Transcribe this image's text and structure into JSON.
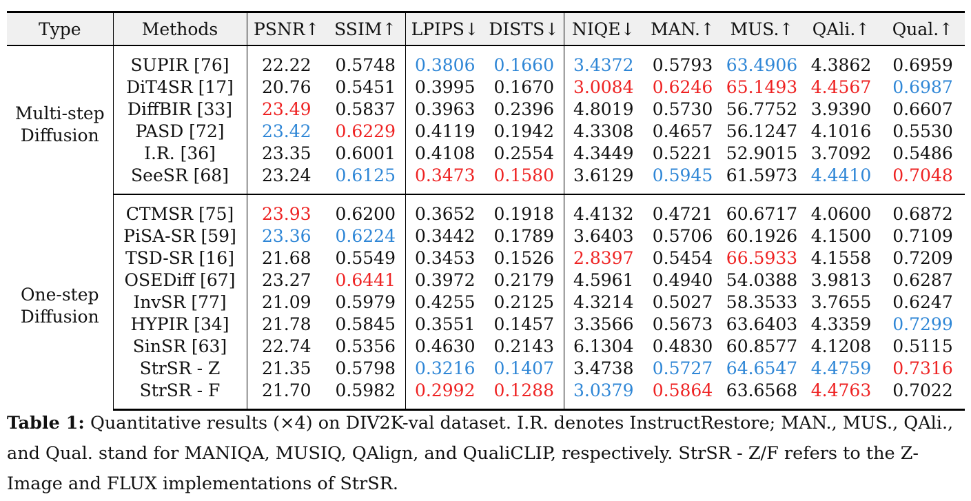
{
  "colors": {
    "best": "#ee2222",
    "second": "#2e86d6",
    "normal": "#111111",
    "header_bg": "#f0f0f0"
  },
  "table": {
    "headers": [
      "Type",
      "Methods",
      "PSNR↑",
      "SSIM↑",
      "LPIPS↓",
      "DISTS↓",
      "NIQE↓",
      "MAN.↑",
      "MUS.↑",
      "QAli.↑",
      "Qual.↑"
    ],
    "groups": [
      {
        "type_lines": [
          "Multi-step",
          "Diffusion"
        ],
        "rows": [
          {
            "method": "SUPIR [76]",
            "cells": [
              {
                "v": "22.22",
                "c": "normal"
              },
              {
                "v": "0.5748",
                "c": "normal"
              },
              {
                "v": "0.3806",
                "c": "second"
              },
              {
                "v": "0.1660",
                "c": "second"
              },
              {
                "v": "3.4372",
                "c": "second"
              },
              {
                "v": "0.5793",
                "c": "normal"
              },
              {
                "v": "63.4906",
                "c": "second"
              },
              {
                "v": "4.3862",
                "c": "normal"
              },
              {
                "v": "0.6959",
                "c": "normal"
              }
            ]
          },
          {
            "method": "DiT4SR [17]",
            "cells": [
              {
                "v": "20.76",
                "c": "normal"
              },
              {
                "v": "0.5451",
                "c": "normal"
              },
              {
                "v": "0.3995",
                "c": "normal"
              },
              {
                "v": "0.1670",
                "c": "normal"
              },
              {
                "v": "3.0084",
                "c": "best"
              },
              {
                "v": "0.6246",
                "c": "best"
              },
              {
                "v": "65.1493",
                "c": "best"
              },
              {
                "v": "4.4567",
                "c": "best"
              },
              {
                "v": "0.6987",
                "c": "second"
              }
            ]
          },
          {
            "method": "DiffBIR [33]",
            "cells": [
              {
                "v": "23.49",
                "c": "best"
              },
              {
                "v": "0.5837",
                "c": "normal"
              },
              {
                "v": "0.3963",
                "c": "normal"
              },
              {
                "v": "0.2396",
                "c": "normal"
              },
              {
                "v": "4.8019",
                "c": "normal"
              },
              {
                "v": "0.5730",
                "c": "normal"
              },
              {
                "v": "56.7752",
                "c": "normal"
              },
              {
                "v": "3.9390",
                "c": "normal"
              },
              {
                "v": "0.6607",
                "c": "normal"
              }
            ]
          },
          {
            "method": "PASD [72]",
            "cells": [
              {
                "v": "23.42",
                "c": "second"
              },
              {
                "v": "0.6229",
                "c": "best"
              },
              {
                "v": "0.4119",
                "c": "normal"
              },
              {
                "v": "0.1942",
                "c": "normal"
              },
              {
                "v": "4.3308",
                "c": "normal"
              },
              {
                "v": "0.4657",
                "c": "normal"
              },
              {
                "v": "56.1247",
                "c": "normal"
              },
              {
                "v": "4.1016",
                "c": "normal"
              },
              {
                "v": "0.5530",
                "c": "normal"
              }
            ]
          },
          {
            "method": "I.R. [36]",
            "cells": [
              {
                "v": "23.35",
                "c": "normal"
              },
              {
                "v": "0.6001",
                "c": "normal"
              },
              {
                "v": "0.4108",
                "c": "normal"
              },
              {
                "v": "0.2554",
                "c": "normal"
              },
              {
                "v": "4.3449",
                "c": "normal"
              },
              {
                "v": "0.5221",
                "c": "normal"
              },
              {
                "v": "52.9015",
                "c": "normal"
              },
              {
                "v": "3.7092",
                "c": "normal"
              },
              {
                "v": "0.5486",
                "c": "normal"
              }
            ]
          },
          {
            "method": "SeeSR [68]",
            "cells": [
              {
                "v": "23.24",
                "c": "normal"
              },
              {
                "v": "0.6125",
                "c": "second"
              },
              {
                "v": "0.3473",
                "c": "best"
              },
              {
                "v": "0.1580",
                "c": "best"
              },
              {
                "v": "3.6129",
                "c": "normal"
              },
              {
                "v": "0.5945",
                "c": "second"
              },
              {
                "v": "61.5973",
                "c": "normal"
              },
              {
                "v": "4.4410",
                "c": "second"
              },
              {
                "v": "0.7048",
                "c": "best"
              }
            ]
          }
        ]
      },
      {
        "type_lines": [
          "One-step",
          "Diffusion"
        ],
        "rows": [
          {
            "method": "CTMSR [75]",
            "cells": [
              {
                "v": "23.93",
                "c": "best"
              },
              {
                "v": "0.6200",
                "c": "normal"
              },
              {
                "v": "0.3652",
                "c": "normal"
              },
              {
                "v": "0.1918",
                "c": "normal"
              },
              {
                "v": "4.4132",
                "c": "normal"
              },
              {
                "v": "0.4721",
                "c": "normal"
              },
              {
                "v": "60.6717",
                "c": "normal"
              },
              {
                "v": "4.0600",
                "c": "normal"
              },
              {
                "v": "0.6872",
                "c": "normal"
              }
            ]
          },
          {
            "method": "PiSA-SR [59]",
            "cells": [
              {
                "v": "23.36",
                "c": "second"
              },
              {
                "v": "0.6224",
                "c": "second"
              },
              {
                "v": "0.3442",
                "c": "normal"
              },
              {
                "v": "0.1789",
                "c": "normal"
              },
              {
                "v": "3.6403",
                "c": "normal"
              },
              {
                "v": "0.5706",
                "c": "normal"
              },
              {
                "v": "60.1926",
                "c": "normal"
              },
              {
                "v": "4.1500",
                "c": "normal"
              },
              {
                "v": "0.7109",
                "c": "normal"
              }
            ]
          },
          {
            "method": "TSD-SR [16]",
            "cells": [
              {
                "v": "21.68",
                "c": "normal"
              },
              {
                "v": "0.5549",
                "c": "normal"
              },
              {
                "v": "0.3453",
                "c": "normal"
              },
              {
                "v": "0.1526",
                "c": "normal"
              },
              {
                "v": "2.8397",
                "c": "best"
              },
              {
                "v": "0.5454",
                "c": "normal"
              },
              {
                "v": "66.5933",
                "c": "best"
              },
              {
                "v": "4.1558",
                "c": "normal"
              },
              {
                "v": "0.7209",
                "c": "normal"
              }
            ]
          },
          {
            "method": "OSEDiff [67]",
            "cells": [
              {
                "v": "23.27",
                "c": "normal"
              },
              {
                "v": "0.6441",
                "c": "best"
              },
              {
                "v": "0.3972",
                "c": "normal"
              },
              {
                "v": "0.2179",
                "c": "normal"
              },
              {
                "v": "4.5961",
                "c": "normal"
              },
              {
                "v": "0.4940",
                "c": "normal"
              },
              {
                "v": "54.0388",
                "c": "normal"
              },
              {
                "v": "3.9813",
                "c": "normal"
              },
              {
                "v": "0.6287",
                "c": "normal"
              }
            ]
          },
          {
            "method": "InvSR [77]",
            "cells": [
              {
                "v": "21.09",
                "c": "normal"
              },
              {
                "v": "0.5979",
                "c": "normal"
              },
              {
                "v": "0.4255",
                "c": "normal"
              },
              {
                "v": "0.2125",
                "c": "normal"
              },
              {
                "v": "4.3214",
                "c": "normal"
              },
              {
                "v": "0.5027",
                "c": "normal"
              },
              {
                "v": "58.3533",
                "c": "normal"
              },
              {
                "v": "3.7655",
                "c": "normal"
              },
              {
                "v": "0.6247",
                "c": "normal"
              }
            ]
          },
          {
            "method": "HYPIR [34]",
            "cells": [
              {
                "v": "21.78",
                "c": "normal"
              },
              {
                "v": "0.5845",
                "c": "normal"
              },
              {
                "v": "0.3551",
                "c": "normal"
              },
              {
                "v": "0.1457",
                "c": "normal"
              },
              {
                "v": "3.3566",
                "c": "normal"
              },
              {
                "v": "0.5673",
                "c": "normal"
              },
              {
                "v": "63.6403",
                "c": "normal"
              },
              {
                "v": "4.3359",
                "c": "normal"
              },
              {
                "v": "0.7299",
                "c": "second"
              }
            ]
          },
          {
            "method": "SinSR [63]",
            "cells": [
              {
                "v": "22.74",
                "c": "normal"
              },
              {
                "v": "0.5356",
                "c": "normal"
              },
              {
                "v": "0.4630",
                "c": "normal"
              },
              {
                "v": "0.2143",
                "c": "normal"
              },
              {
                "v": "6.1304",
                "c": "normal"
              },
              {
                "v": "0.4830",
                "c": "normal"
              },
              {
                "v": "60.8577",
                "c": "normal"
              },
              {
                "v": "4.1208",
                "c": "normal"
              },
              {
                "v": "0.5115",
                "c": "normal"
              }
            ]
          },
          {
            "method": "StrSR - Z",
            "cells": [
              {
                "v": "21.35",
                "c": "normal"
              },
              {
                "v": "0.5798",
                "c": "normal"
              },
              {
                "v": "0.3216",
                "c": "second"
              },
              {
                "v": "0.1407",
                "c": "second"
              },
              {
                "v": "3.4738",
                "c": "normal"
              },
              {
                "v": "0.5727",
                "c": "second"
              },
              {
                "v": "64.6547",
                "c": "second"
              },
              {
                "v": "4.4759",
                "c": "second"
              },
              {
                "v": "0.7316",
                "c": "best"
              }
            ]
          },
          {
            "method": "StrSR - F",
            "cells": [
              {
                "v": "21.70",
                "c": "normal"
              },
              {
                "v": "0.5982",
                "c": "normal"
              },
              {
                "v": "0.2992",
                "c": "best"
              },
              {
                "v": "0.1288",
                "c": "best"
              },
              {
                "v": "3.0379",
                "c": "second"
              },
              {
                "v": "0.5864",
                "c": "best"
              },
              {
                "v": "63.6568",
                "c": "normal"
              },
              {
                "v": "4.4763",
                "c": "best"
              },
              {
                "v": "0.7022",
                "c": "normal"
              }
            ]
          }
        ]
      }
    ]
  },
  "caption": {
    "label": "Table 1:",
    "text": " Quantitative results (×4) on DIV2K-val dataset. I.R. denotes InstructRestore; MAN., MUS., QAli., and Qual. stand for MANIQA, MUSIQ, QAlign, and QualiCLIP, respectively. StrSR - Z/F refers to the Z-Image and FLUX implementations of StrSR."
  }
}
